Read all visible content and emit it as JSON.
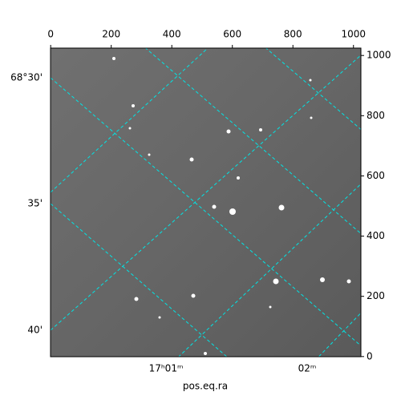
{
  "chart_data": {
    "type": "image",
    "xlabel": "pos.eq.ra",
    "xlim": [
      -0.5,
      1024.5
    ],
    "ylim": [
      -0.5,
      1024.5
    ],
    "xticks": [
      0,
      200,
      400,
      600,
      800,
      1000
    ],
    "yticks": [
      0,
      200,
      400,
      600,
      800,
      1000
    ],
    "ra_ticks": [
      "17ʰ01ᵐ",
      "02ᵐ"
    ],
    "dec_ticks": [
      "68°30'",
      "35'",
      "40'"
    ],
    "grid_color": "#00e5e5"
  }
}
